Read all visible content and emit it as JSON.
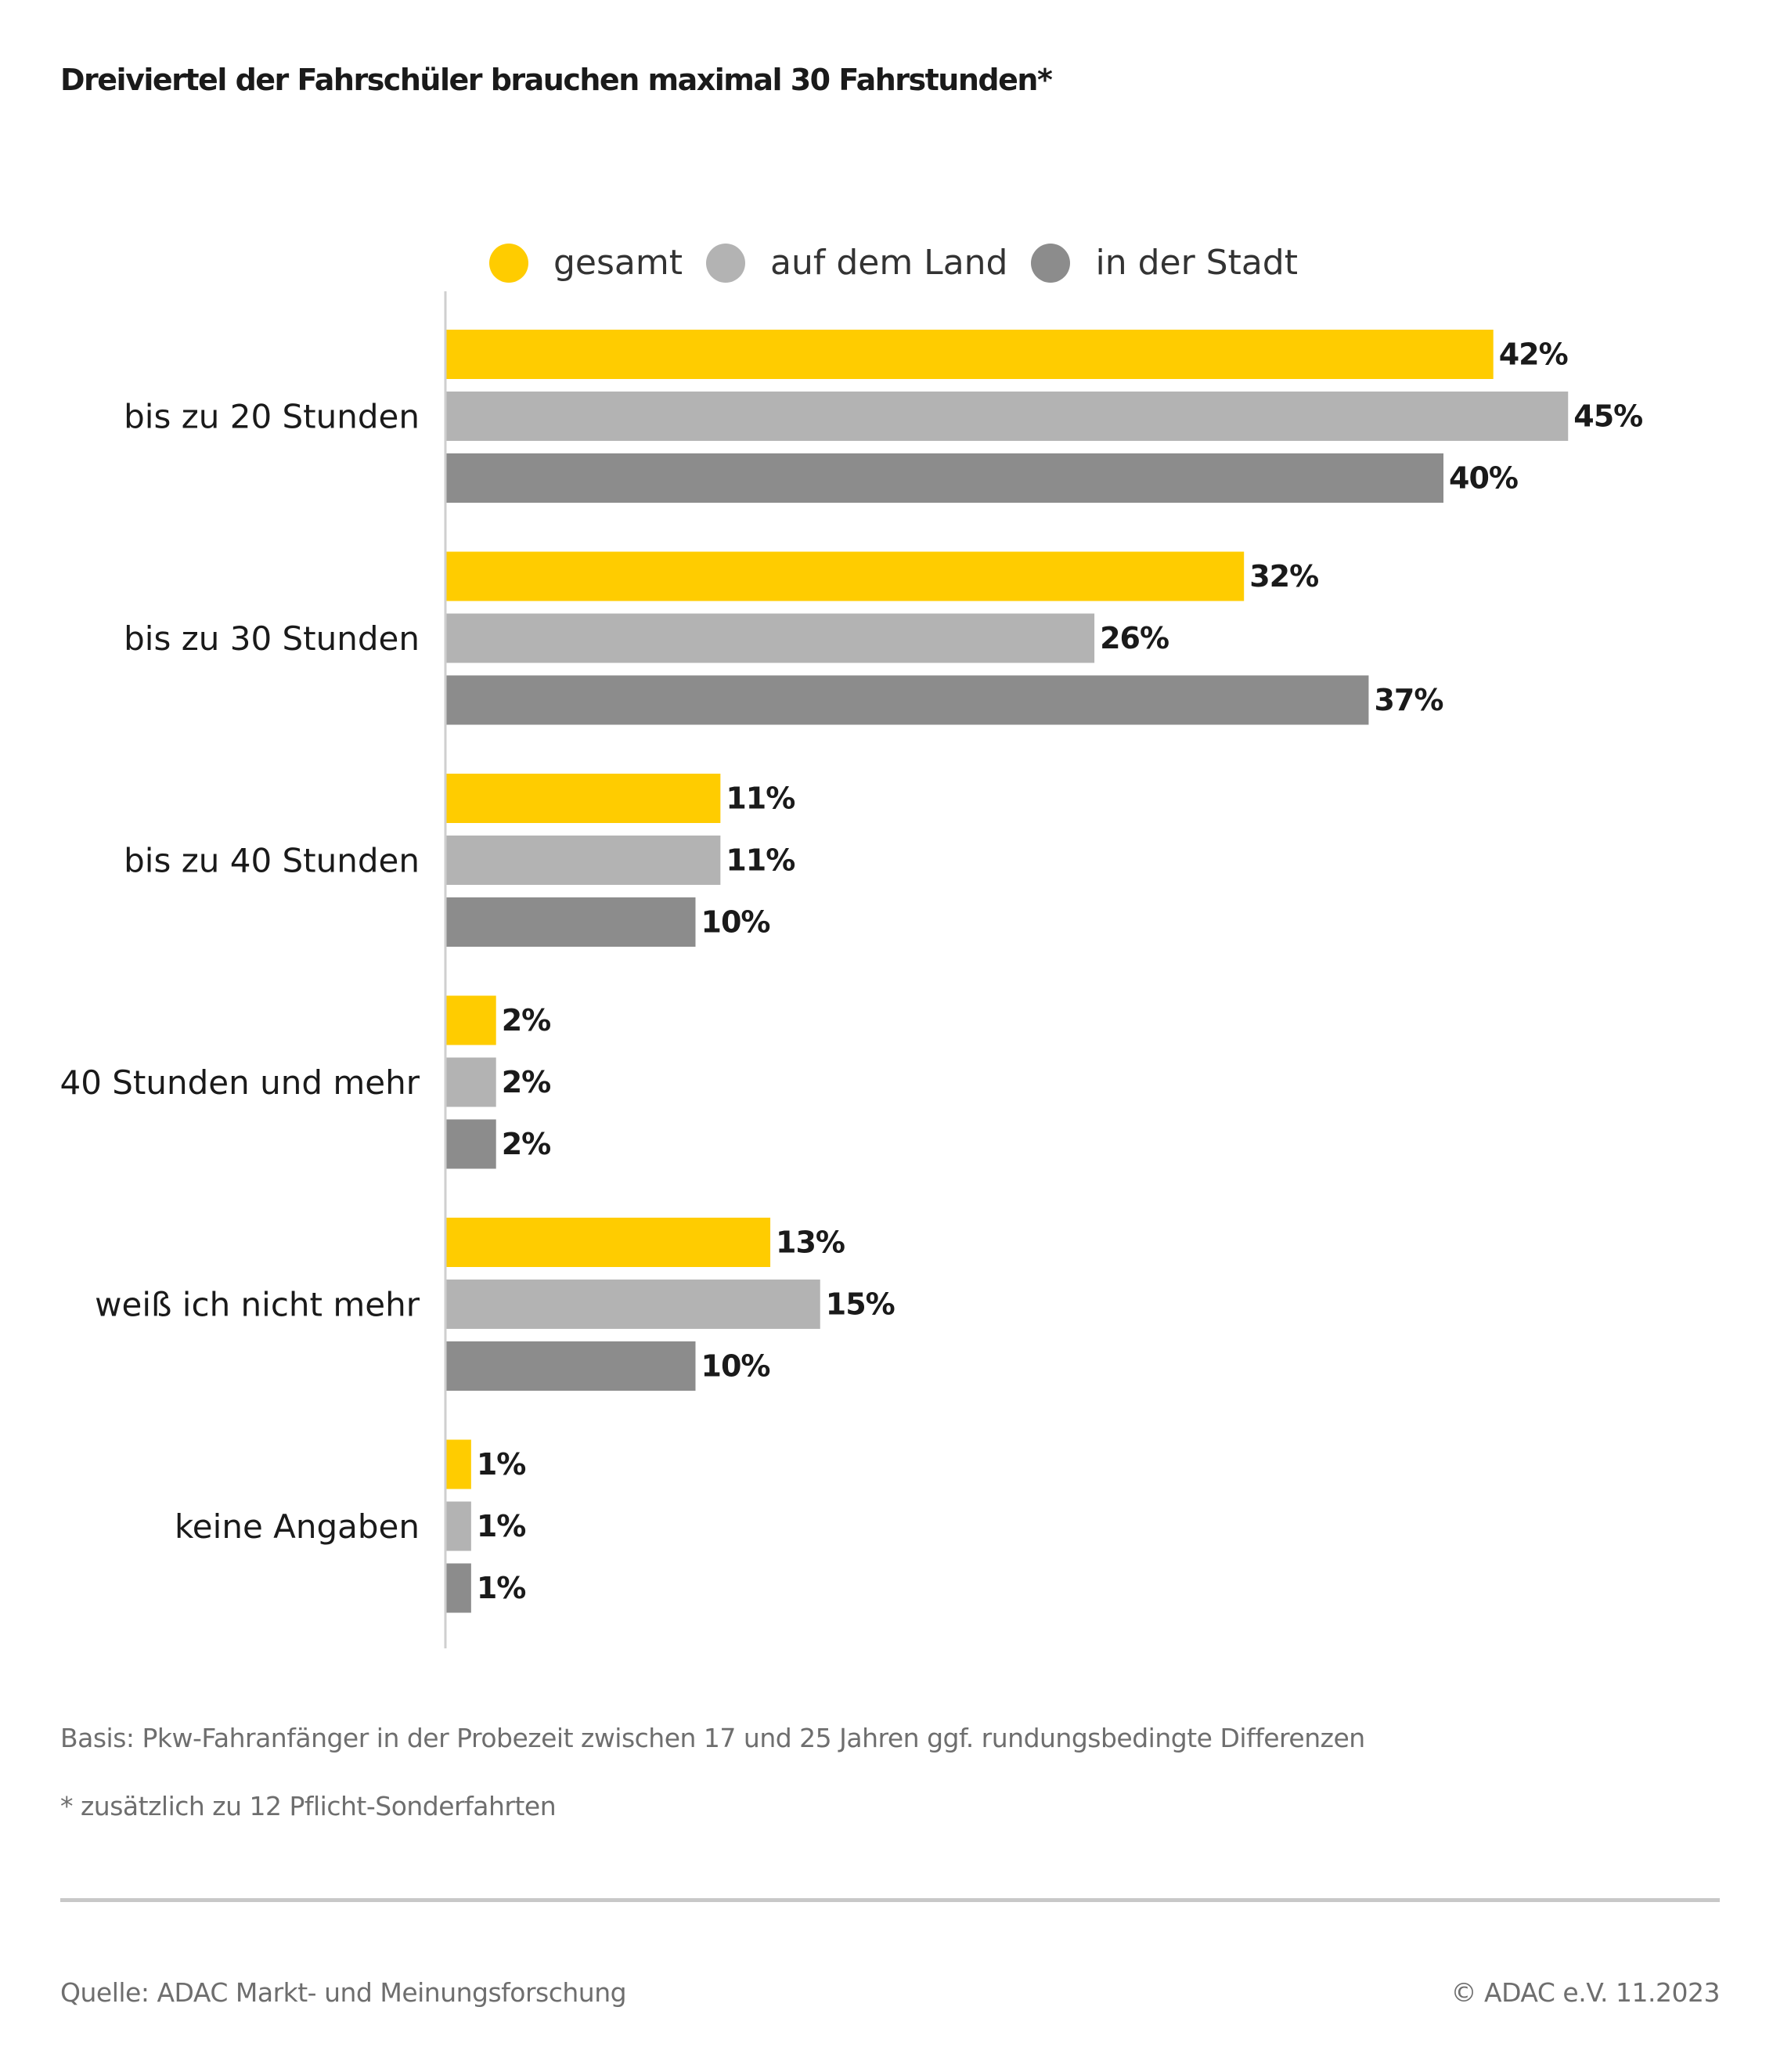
{
  "title": "Dreiviertel der Fahrschüler brauchen maximal 30 Fahrstunden*",
  "legend": [
    {
      "label": "gesamt",
      "color": "#FFCC00"
    },
    {
      "label": "auf dem Land",
      "color": "#B3B3B3"
    },
    {
      "label": "in der Stadt",
      "color": "#8C8C8C"
    }
  ],
  "chart_data": {
    "type": "bar",
    "orientation": "horizontal",
    "title": "Dreiviertel der Fahrschüler brauchen maximal 30 Fahrstunden*",
    "xlabel": "",
    "ylabel": "",
    "value_suffix": "%",
    "xlim": [
      0,
      45
    ],
    "grid": false,
    "legend_position": "top",
    "categories": [
      "bis zu 20 Stunden",
      "bis zu 30 Stunden",
      "bis zu 40 Stunden",
      "40 Stunden und mehr",
      "weiß ich nicht mehr",
      "keine Angaben"
    ],
    "series": [
      {
        "name": "gesamt",
        "color": "#FFCC00",
        "values": [
          42,
          32,
          11,
          2,
          13,
          1
        ]
      },
      {
        "name": "auf dem Land",
        "color": "#B3B3B3",
        "values": [
          45,
          26,
          11,
          2,
          15,
          1
        ]
      },
      {
        "name": "in der Stadt",
        "color": "#8C8C8C",
        "values": [
          40,
          37,
          10,
          2,
          10,
          1
        ]
      }
    ]
  },
  "notes": {
    "basis": "Basis: Pkw-Fahranfänger in der Probezeit zwischen 17 und 25 Jahren ggf. rundungsbedingte Differenzen",
    "footnote": "* zusätzlich zu 12 Pflicht-Sonderfahrten"
  },
  "footer": {
    "source": "Quelle: ADAC Markt- und Meinungsforschung",
    "copyright": "© ADAC e.V. 11.2023"
  }
}
